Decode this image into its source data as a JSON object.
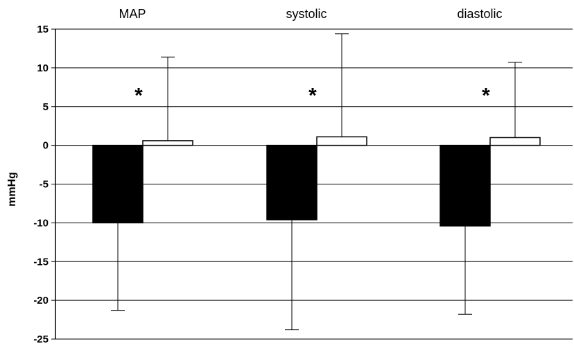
{
  "chart_data": {
    "type": "bar",
    "categories": [
      "MAP",
      "systolic",
      "diastolic"
    ],
    "ylabel": "mmHg",
    "ylim": [
      -25,
      15
    ],
    "yticks": [
      15,
      10,
      5,
      0,
      -5,
      -10,
      -15,
      -20,
      -25
    ],
    "grid": true,
    "legend": "none",
    "series": [
      {
        "color": "#000000",
        "values": [
          -10.0,
          -9.6,
          -10.4
        ],
        "error": [
          11.3,
          14.2,
          11.4
        ]
      },
      {
        "color": "#ffffff",
        "values": [
          0.6,
          1.1,
          1.0
        ],
        "error": [
          10.8,
          13.3,
          9.7
        ]
      }
    ],
    "annotations": [
      {
        "text": "*",
        "category": "MAP",
        "y": 7.0
      },
      {
        "text": "*",
        "category": "systolic",
        "y": 7.0
      },
      {
        "text": "*",
        "category": "diastolic",
        "y": 7.0
      }
    ]
  }
}
